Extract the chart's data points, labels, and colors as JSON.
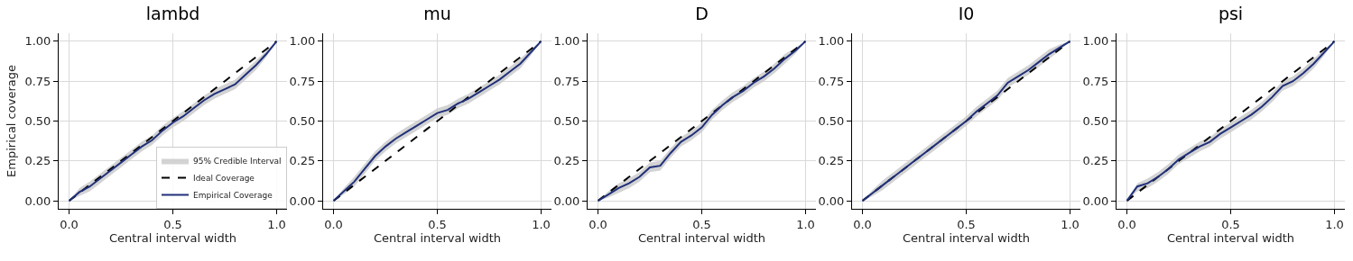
{
  "chart_data": [
    {
      "type": "line",
      "title": "lambd",
      "xlabel": "Central interval width",
      "ylabel": "Empirical coverage",
      "grid": true,
      "legend": "bottom right",
      "xlim": [
        -0.05,
        1.05
      ],
      "ylim": [
        -0.05,
        1.05
      ],
      "xticks": [
        {
          "value": 0,
          "label": "0.0"
        },
        {
          "value": 0.5,
          "label": "0.5"
        },
        {
          "value": 1,
          "label": "1.0"
        }
      ],
      "yticks": [
        {
          "value": 0,
          "label": "0.00"
        },
        {
          "value": 0.25,
          "label": "0.25"
        },
        {
          "value": 0.5,
          "label": "0.50"
        },
        {
          "value": 0.75,
          "label": "0.75"
        },
        {
          "value": 1,
          "label": "1.00"
        }
      ],
      "x": [
        0,
        0.05,
        0.1,
        0.15,
        0.2,
        0.25,
        0.3,
        0.35,
        0.4,
        0.45,
        0.5,
        0.55,
        0.6,
        0.65,
        0.7,
        0.75,
        0.8,
        0.85,
        0.9,
        0.95,
        1
      ],
      "series": [
        {
          "name": "95% Credible Interval",
          "type": "area",
          "color": "#c8c8c8",
          "values": [
            null,
            null,
            null,
            null,
            null,
            null,
            null,
            null,
            null,
            null,
            null,
            null,
            null,
            null,
            null,
            null,
            null,
            null,
            null,
            null,
            null
          ],
          "lower": [
            0,
            0.03,
            0.06,
            0.11,
            0.16,
            0.21,
            0.26,
            0.31,
            0.35,
            0.41,
            0.46,
            0.5,
            0.55,
            0.6,
            0.64,
            0.67,
            0.7,
            0.76,
            0.82,
            0.9,
            1
          ],
          "upper": [
            0,
            0.08,
            0.12,
            0.17,
            0.22,
            0.27,
            0.32,
            0.37,
            0.41,
            0.47,
            0.52,
            0.56,
            0.61,
            0.66,
            0.7,
            0.73,
            0.76,
            0.82,
            0.88,
            0.94,
            1
          ]
        },
        {
          "name": "Ideal Coverage",
          "color": "#000000",
          "line_style": "dashed",
          "values": [
            0,
            0.05,
            0.1,
            0.15,
            0.2,
            0.25,
            0.3,
            0.35,
            0.4,
            0.45,
            0.5,
            0.55,
            0.6,
            0.65,
            0.7,
            0.75,
            0.8,
            0.85,
            0.9,
            0.95,
            1
          ]
        },
        {
          "name": "Empirical Coverage",
          "color": "#1f2f7a",
          "line_style": "solid",
          "values": [
            0,
            0.055,
            0.09,
            0.14,
            0.19,
            0.24,
            0.29,
            0.34,
            0.38,
            0.44,
            0.49,
            0.53,
            0.58,
            0.63,
            0.67,
            0.7,
            0.73,
            0.79,
            0.85,
            0.92,
            1
          ]
        }
      ]
    },
    {
      "type": "line",
      "title": "mu",
      "xlabel": "Central interval width",
      "grid": true,
      "xlim": [
        -0.05,
        1.05
      ],
      "ylim": [
        -0.05,
        1.05
      ],
      "xticks": [
        {
          "value": 0,
          "label": "0.0"
        },
        {
          "value": 0.5,
          "label": "0.5"
        },
        {
          "value": 1,
          "label": "1.0"
        }
      ],
      "yticks": [
        {
          "value": 0,
          "label": "0.00"
        },
        {
          "value": 0.25,
          "label": "0.25"
        },
        {
          "value": 0.5,
          "label": "0.50"
        },
        {
          "value": 0.75,
          "label": "0.75"
        },
        {
          "value": 1,
          "label": "1.00"
        }
      ],
      "x": [
        0,
        0.05,
        0.1,
        0.15,
        0.2,
        0.25,
        0.3,
        0.35,
        0.4,
        0.45,
        0.5,
        0.55,
        0.6,
        0.65,
        0.7,
        0.75,
        0.8,
        0.85,
        0.9,
        0.95,
        1
      ],
      "series": [
        {
          "type": "area",
          "color": "#c8c8c8",
          "values": [
            null,
            null,
            null,
            null,
            null,
            null,
            null,
            null,
            null,
            null,
            null,
            null,
            null,
            null,
            null,
            null,
            null,
            null,
            null,
            null,
            null
          ],
          "lower": [
            0,
            0.04,
            0.09,
            0.17,
            0.25,
            0.31,
            0.36,
            0.4,
            0.44,
            0.48,
            0.52,
            0.54,
            0.58,
            0.61,
            0.65,
            0.69,
            0.73,
            0.78,
            0.83,
            0.91,
            1
          ],
          "upper": [
            0,
            0.08,
            0.15,
            0.23,
            0.31,
            0.37,
            0.42,
            0.46,
            0.5,
            0.54,
            0.58,
            0.6,
            0.64,
            0.67,
            0.71,
            0.75,
            0.79,
            0.84,
            0.89,
            0.95,
            1
          ]
        },
        {
          "color": "#000000",
          "line_style": "dashed",
          "values": [
            0,
            0.05,
            0.1,
            0.15,
            0.2,
            0.25,
            0.3,
            0.35,
            0.4,
            0.45,
            0.5,
            0.55,
            0.6,
            0.65,
            0.7,
            0.75,
            0.8,
            0.85,
            0.9,
            0.95,
            1
          ]
        },
        {
          "color": "#1f2f7a",
          "line_style": "solid",
          "values": [
            0,
            0.06,
            0.12,
            0.2,
            0.28,
            0.34,
            0.39,
            0.43,
            0.47,
            0.51,
            0.55,
            0.57,
            0.61,
            0.64,
            0.68,
            0.72,
            0.76,
            0.81,
            0.86,
            0.93,
            1
          ]
        }
      ]
    },
    {
      "type": "line",
      "title": "D",
      "xlabel": "Central interval width",
      "grid": true,
      "xlim": [
        -0.05,
        1.05
      ],
      "ylim": [
        -0.05,
        1.05
      ],
      "xticks": [
        {
          "value": 0,
          "label": "0.0"
        },
        {
          "value": 0.5,
          "label": "0.5"
        },
        {
          "value": 1,
          "label": "1.0"
        }
      ],
      "yticks": [
        {
          "value": 0,
          "label": "0.00"
        },
        {
          "value": 0.25,
          "label": "0.25"
        },
        {
          "value": 0.5,
          "label": "0.50"
        },
        {
          "value": 0.75,
          "label": "0.75"
        },
        {
          "value": 1,
          "label": "1.00"
        }
      ],
      "x": [
        0,
        0.05,
        0.1,
        0.15,
        0.2,
        0.25,
        0.3,
        0.35,
        0.4,
        0.45,
        0.5,
        0.55,
        0.6,
        0.65,
        0.7,
        0.75,
        0.8,
        0.85,
        0.9,
        0.95,
        1
      ],
      "series": [
        {
          "type": "area",
          "color": "#c8c8c8",
          "values": [
            null,
            null,
            null,
            null,
            null,
            null,
            null,
            null,
            null,
            null,
            null,
            null,
            null,
            null,
            null,
            null,
            null,
            null,
            null,
            null,
            null
          ],
          "lower": [
            0,
            0.02,
            0.05,
            0.08,
            0.12,
            0.18,
            0.19,
            0.27,
            0.34,
            0.38,
            0.43,
            0.51,
            0.57,
            0.62,
            0.66,
            0.71,
            0.75,
            0.8,
            0.86,
            0.92,
            1
          ],
          "upper": [
            0,
            0.06,
            0.11,
            0.14,
            0.18,
            0.24,
            0.25,
            0.33,
            0.4,
            0.44,
            0.49,
            0.57,
            0.63,
            0.68,
            0.72,
            0.77,
            0.81,
            0.86,
            0.92,
            0.96,
            1
          ]
        },
        {
          "color": "#000000",
          "line_style": "dashed",
          "values": [
            0,
            0.05,
            0.1,
            0.15,
            0.2,
            0.25,
            0.3,
            0.35,
            0.4,
            0.45,
            0.5,
            0.55,
            0.6,
            0.65,
            0.7,
            0.75,
            0.8,
            0.85,
            0.9,
            0.95,
            1
          ]
        },
        {
          "color": "#1f2f7a",
          "line_style": "solid",
          "values": [
            0,
            0.04,
            0.08,
            0.11,
            0.15,
            0.21,
            0.22,
            0.3,
            0.37,
            0.41,
            0.46,
            0.54,
            0.6,
            0.65,
            0.69,
            0.74,
            0.78,
            0.83,
            0.89,
            0.94,
            1
          ]
        }
      ]
    },
    {
      "type": "line",
      "title": "I0",
      "xlabel": "Central interval width",
      "grid": true,
      "xlim": [
        -0.05,
        1.05
      ],
      "ylim": [
        -0.05,
        1.05
      ],
      "xticks": [
        {
          "value": 0,
          "label": "0.0"
        },
        {
          "value": 0.5,
          "label": "0.5"
        },
        {
          "value": 1,
          "label": "1.0"
        }
      ],
      "yticks": [
        {
          "value": 0,
          "label": "0.00"
        },
        {
          "value": 0.25,
          "label": "0.25"
        },
        {
          "value": 0.5,
          "label": "0.50"
        },
        {
          "value": 0.75,
          "label": "0.75"
        },
        {
          "value": 1,
          "label": "1.00"
        }
      ],
      "x": [
        0,
        0.05,
        0.1,
        0.15,
        0.2,
        0.25,
        0.3,
        0.35,
        0.4,
        0.45,
        0.5,
        0.55,
        0.6,
        0.65,
        0.7,
        0.75,
        0.8,
        0.85,
        0.9,
        0.95,
        1
      ],
      "series": [
        {
          "type": "area",
          "color": "#c8c8c8",
          "values": [
            null,
            null,
            null,
            null,
            null,
            null,
            null,
            null,
            null,
            null,
            null,
            null,
            null,
            null,
            null,
            null,
            null,
            null,
            null,
            null,
            null
          ],
          "lower": [
            0,
            0.03,
            0.07,
            0.12,
            0.17,
            0.22,
            0.27,
            0.32,
            0.37,
            0.42,
            0.47,
            0.53,
            0.58,
            0.63,
            0.71,
            0.75,
            0.79,
            0.84,
            0.89,
            0.94,
            1
          ],
          "upper": [
            0,
            0.07,
            0.13,
            0.18,
            0.23,
            0.28,
            0.33,
            0.38,
            0.43,
            0.48,
            0.53,
            0.59,
            0.64,
            0.69,
            0.77,
            0.81,
            0.85,
            0.9,
            0.95,
            0.98,
            1
          ]
        },
        {
          "color": "#000000",
          "line_style": "dashed",
          "values": [
            0,
            0.05,
            0.1,
            0.15,
            0.2,
            0.25,
            0.3,
            0.35,
            0.4,
            0.45,
            0.5,
            0.55,
            0.6,
            0.65,
            0.7,
            0.75,
            0.8,
            0.85,
            0.9,
            0.95,
            1
          ]
        },
        {
          "color": "#1f2f7a",
          "line_style": "solid",
          "values": [
            0,
            0.05,
            0.1,
            0.15,
            0.2,
            0.25,
            0.3,
            0.35,
            0.4,
            0.45,
            0.5,
            0.56,
            0.61,
            0.66,
            0.74,
            0.78,
            0.82,
            0.87,
            0.92,
            0.96,
            1
          ]
        }
      ]
    },
    {
      "type": "line",
      "title": "psi",
      "xlabel": "Central interval width",
      "grid": true,
      "xlim": [
        -0.05,
        1.05
      ],
      "ylim": [
        -0.05,
        1.05
      ],
      "xticks": [
        {
          "value": 0,
          "label": "0.0"
        },
        {
          "value": 0.5,
          "label": "0.5"
        },
        {
          "value": 1,
          "label": "1.0"
        }
      ],
      "yticks": [
        {
          "value": 0,
          "label": "0.00"
        },
        {
          "value": 0.25,
          "label": "0.25"
        },
        {
          "value": 0.5,
          "label": "0.50"
        },
        {
          "value": 0.75,
          "label": "0.75"
        },
        {
          "value": 1,
          "label": "1.00"
        }
      ],
      "x": [
        0,
        0.05,
        0.1,
        0.15,
        0.2,
        0.25,
        0.3,
        0.35,
        0.4,
        0.45,
        0.5,
        0.55,
        0.6,
        0.65,
        0.7,
        0.75,
        0.8,
        0.85,
        0.9,
        0.95,
        1
      ],
      "series": [
        {
          "type": "area",
          "color": "#c8c8c8",
          "values": [
            null,
            null,
            null,
            null,
            null,
            null,
            null,
            null,
            null,
            null,
            null,
            null,
            null,
            null,
            null,
            null,
            null,
            null,
            null,
            null,
            null
          ],
          "lower": [
            0,
            0.06,
            0.08,
            0.12,
            0.17,
            0.23,
            0.27,
            0.31,
            0.34,
            0.39,
            0.43,
            0.47,
            0.51,
            0.56,
            0.62,
            0.69,
            0.72,
            0.77,
            0.83,
            0.91,
            1
          ],
          "upper": [
            0,
            0.11,
            0.14,
            0.18,
            0.23,
            0.29,
            0.33,
            0.37,
            0.4,
            0.45,
            0.49,
            0.53,
            0.57,
            0.62,
            0.68,
            0.75,
            0.78,
            0.83,
            0.89,
            0.95,
            1
          ]
        },
        {
          "color": "#000000",
          "line_style": "dashed",
          "values": [
            0,
            0.05,
            0.1,
            0.15,
            0.2,
            0.25,
            0.3,
            0.35,
            0.4,
            0.45,
            0.5,
            0.55,
            0.6,
            0.65,
            0.7,
            0.75,
            0.8,
            0.85,
            0.9,
            0.95,
            1
          ]
        },
        {
          "color": "#1f2f7a",
          "line_style": "solid",
          "values": [
            0,
            0.09,
            0.11,
            0.15,
            0.2,
            0.26,
            0.3,
            0.34,
            0.37,
            0.42,
            0.46,
            0.5,
            0.54,
            0.59,
            0.65,
            0.72,
            0.75,
            0.8,
            0.86,
            0.93,
            1
          ]
        }
      ]
    }
  ]
}
